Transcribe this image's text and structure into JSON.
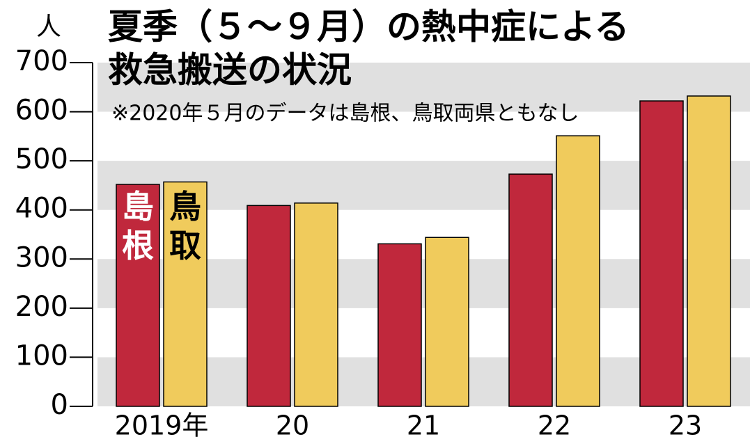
{
  "chart_data": {
    "type": "bar",
    "title": [
      "夏季（５～９月）の熱中症による",
      "救急搬送の状況"
    ],
    "subtitle": "※2020年５月のデータは島根、鳥取両県ともなし",
    "y_label": "人",
    "categories": [
      "2019年",
      "20",
      "21",
      "22",
      "23"
    ],
    "series": [
      {
        "name": "島根",
        "color": "#c0283c",
        "values": [
          452,
          409,
          331,
          473,
          622
        ]
      },
      {
        "name": "鳥取",
        "color": "#f0cb5c",
        "values": [
          457,
          414,
          344,
          551,
          632
        ]
      }
    ],
    "ylim": [
      0,
      700
    ],
    "yticks": [
      0,
      100,
      200,
      300,
      400,
      500,
      600,
      700
    ],
    "band_color": "#e0e0e0"
  }
}
